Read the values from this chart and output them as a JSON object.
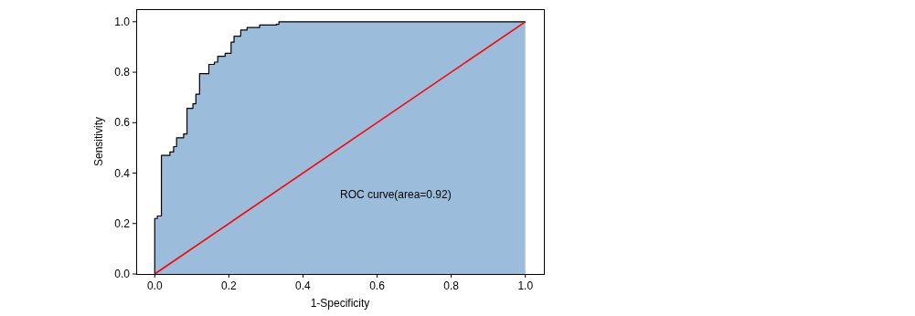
{
  "chart_data": {
    "type": "step",
    "xlabel": "1-Specificity",
    "ylabel": "Sensitivity",
    "annotations": [
      "ROC curve(area=0.92)"
    ],
    "xlim": [
      -0.05,
      1.05
    ],
    "ylim": [
      0,
      1.05
    ],
    "xticks": [
      {
        "value": 0,
        "label": "0.0"
      },
      0.2,
      0.4,
      0.6,
      0.8,
      {
        "value": 1,
        "label": "1.0"
      }
    ],
    "yticks": [
      {
        "value": 0,
        "label": "0.0"
      },
      0.2,
      0.4,
      0.6,
      0.8,
      {
        "value": 1,
        "label": "1.0"
      }
    ],
    "series": [
      {
        "color": "#000000",
        "x": [
          0,
          0,
          0.007,
          0.018,
          0.041,
          0.051,
          0.059,
          0.078,
          0.087,
          0.103,
          0.111,
          0.121,
          0.146,
          0.161,
          0.17,
          0.19,
          0.206,
          0.214,
          0.232,
          0.249,
          0.283,
          0.328,
          0.335,
          1
        ],
        "values": [
          0,
          0.22,
          0.23,
          0.47,
          0.484,
          0.505,
          0.54,
          0.555,
          0.657,
          0.675,
          0.713,
          0.794,
          0.831,
          0.84,
          0.863,
          0.875,
          0.919,
          0.943,
          0.967,
          0.977,
          0.987,
          0.99,
          1,
          1
        ]
      },
      {
        "type": "line",
        "color": "#ff0000",
        "x": [
          0,
          1
        ],
        "values": [
          0,
          1
        ]
      }
    ]
  }
}
